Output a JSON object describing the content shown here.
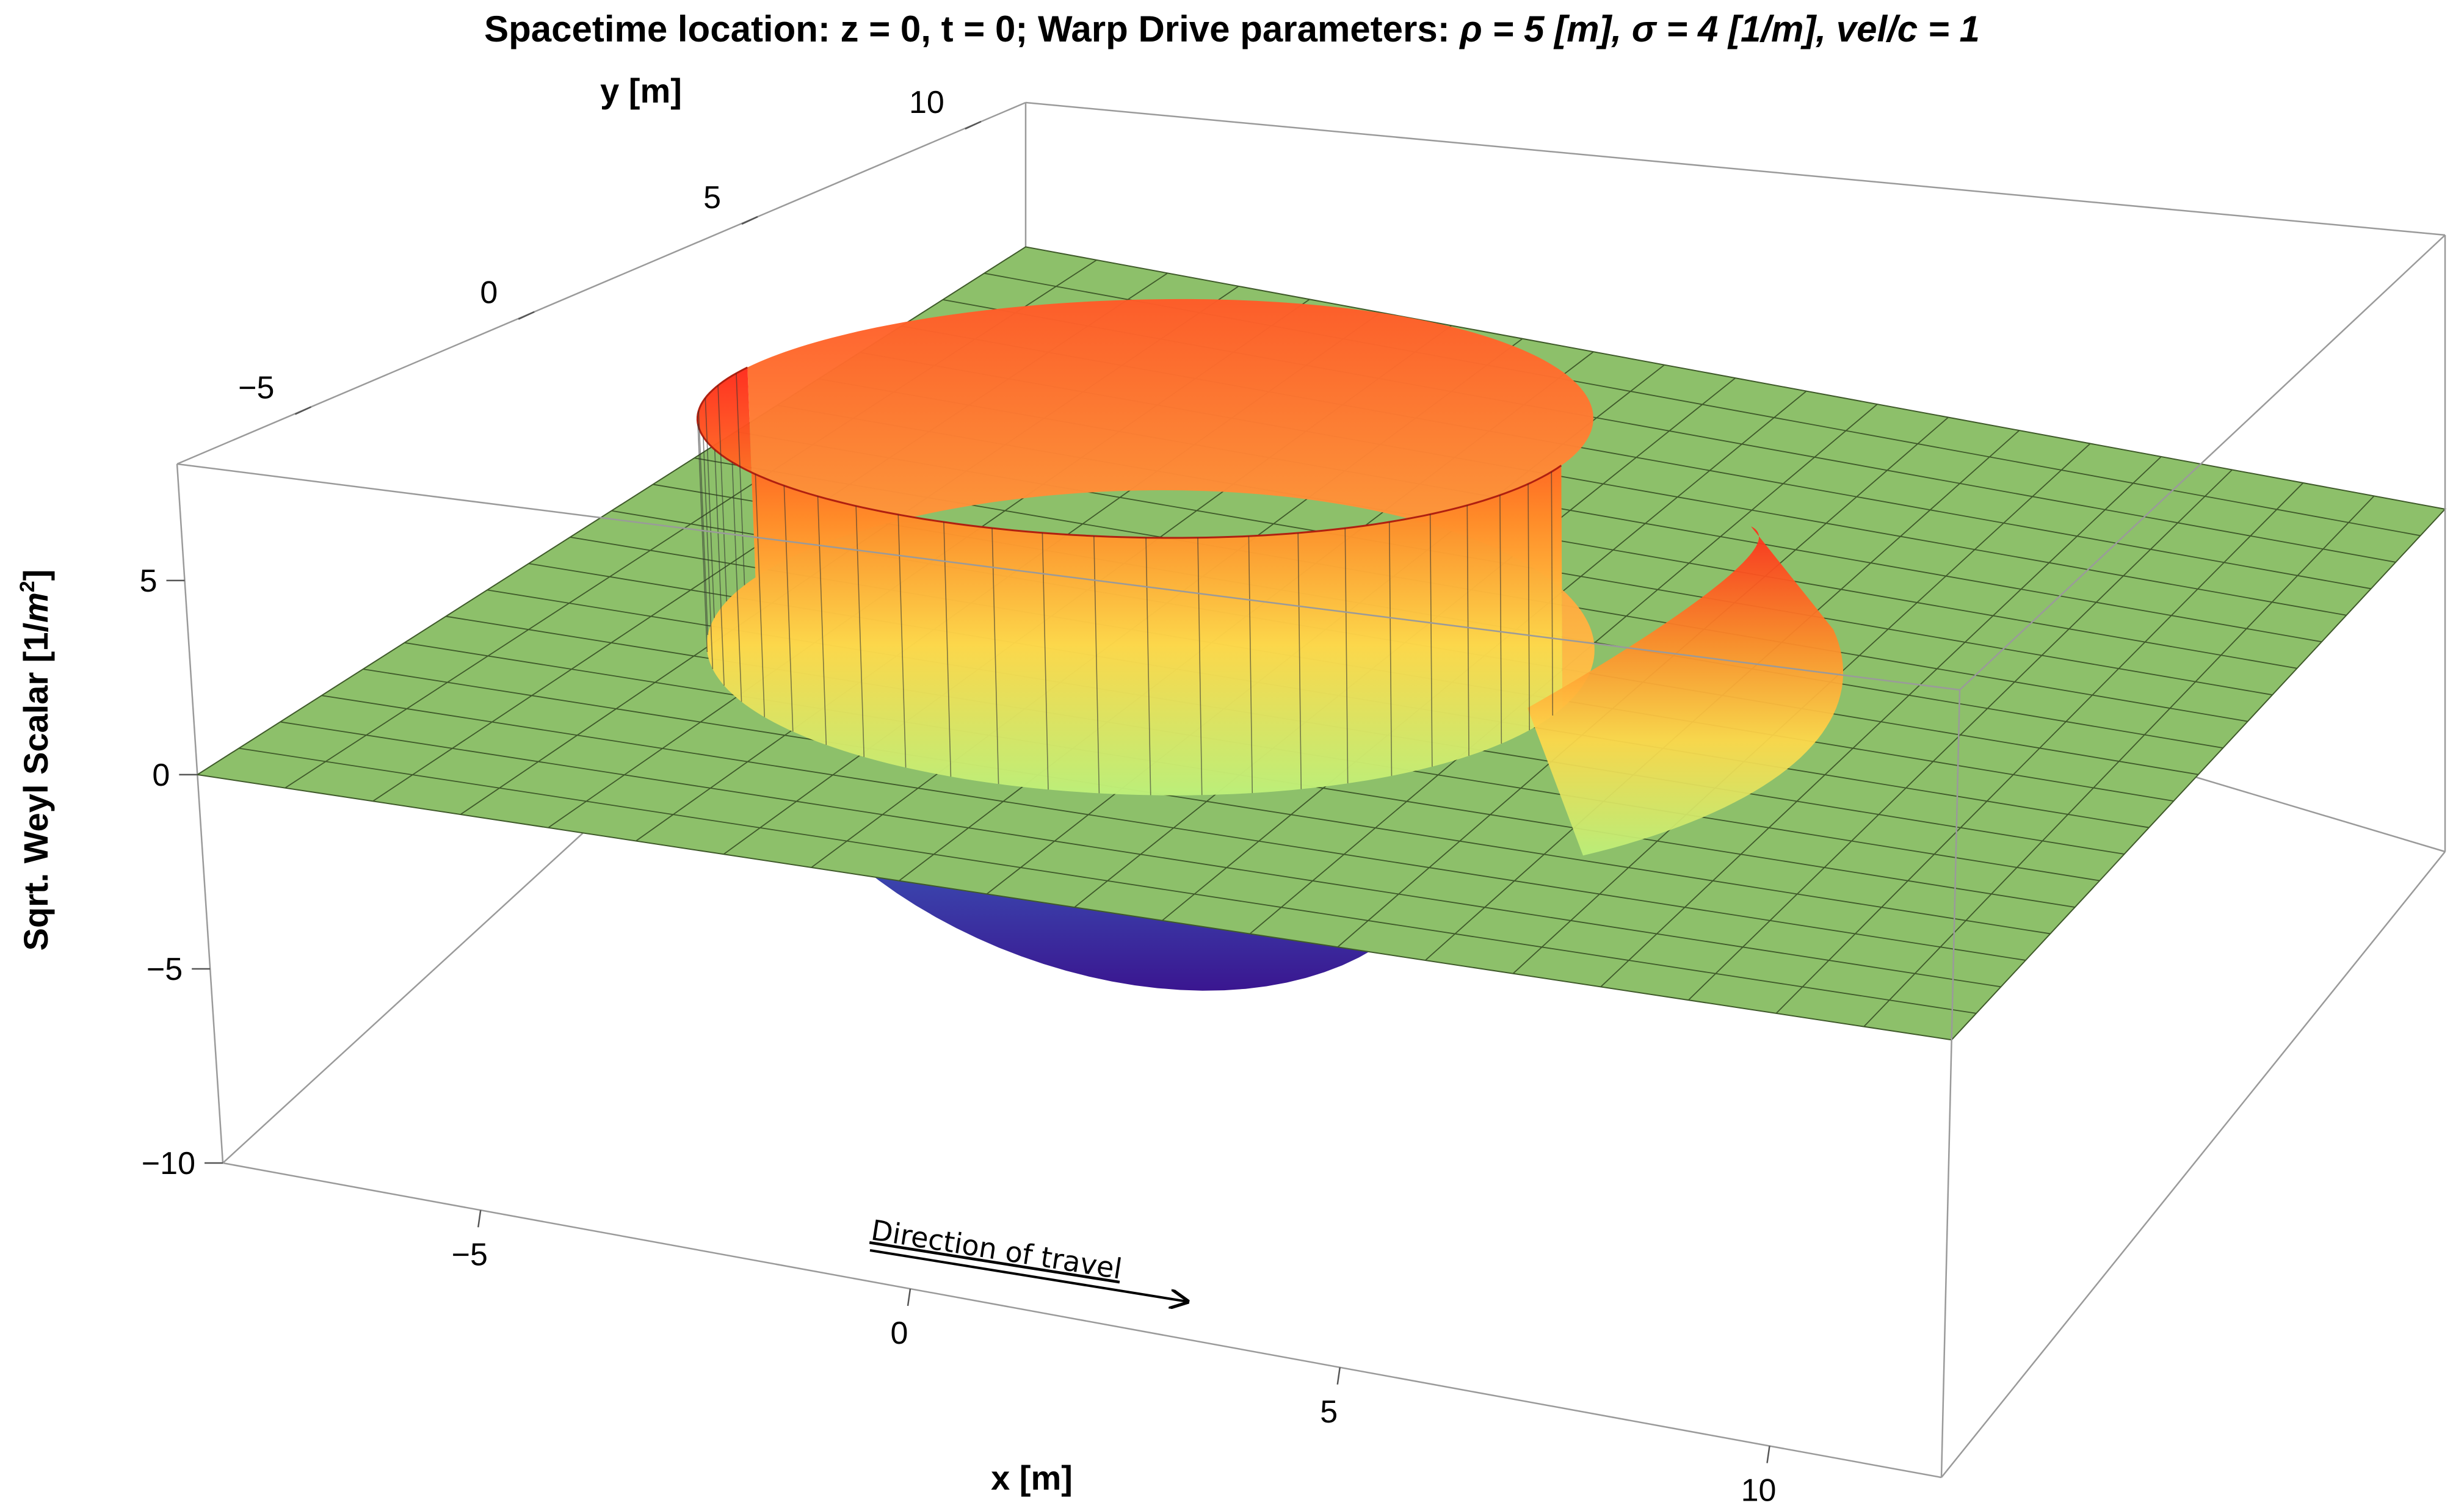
{
  "chart_data": {
    "type": "surface3d",
    "title_prefix": "Spacetime location:  z = 0, t = 0;   Warp Drive parameters: ",
    "title_param_rho": "ρ = 5 [m], ",
    "title_param_sigma": "σ = 4 [1/m], vel/c = 1",
    "xlabel": "x [m]",
    "ylabel": "y [m]",
    "zlabel_main": "Sqrt. Weyl Scalar [1/",
    "zlabel_unit": "m",
    "zlabel_exp": "2",
    "zlabel_close": "]",
    "xticks": [
      "−5",
      "0",
      "5",
      "10"
    ],
    "yticks": [
      "−5",
      "0",
      "5",
      "10"
    ],
    "zticks": [
      "−10",
      "−5",
      "0",
      "5"
    ],
    "xlim": [
      -8,
      12
    ],
    "ylim": [
      -8,
      11
    ],
    "zlim": [
      -10,
      8
    ],
    "parameters": {
      "rho": 5,
      "sigma": 4,
      "vel_over_c": 1,
      "z": 0,
      "t": 0
    },
    "features": {
      "baseline_plane_z": 0,
      "wall_ring_radius": 5,
      "wall_peak_height": 7,
      "bowl_min_z": -7
    },
    "annotation": "Direction of travel",
    "colors": {
      "plane": "#8dc06a",
      "grid": "#3f5a2a",
      "ring_top": "#ff3c1e",
      "ring_mid": "#ffd23c",
      "ring_low": "#c8f078",
      "bowl_top": "#5aa0e6",
      "bowl_bottom": "#3d1e96"
    }
  }
}
